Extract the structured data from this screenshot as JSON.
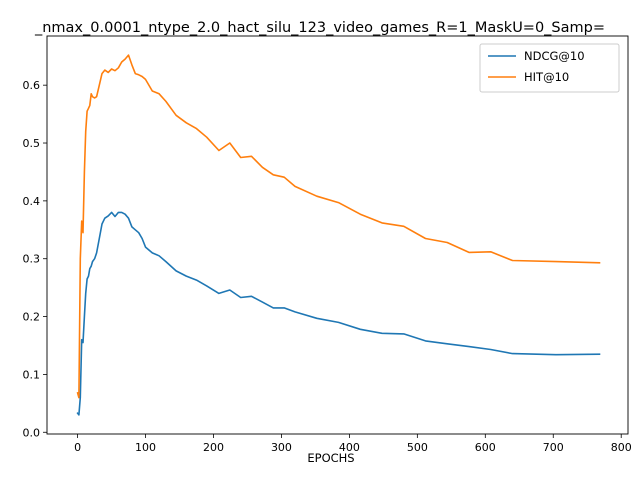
{
  "chart_data": {
    "type": "line",
    "title": "_nmax_0.0001_ntype_2.0_hact_silu_123_video_games_R=1_MaskU=0_Samp=",
    "xlabel": "EPOCHS",
    "ylabel": "",
    "xlim": [
      -45,
      810
    ],
    "ylim": [
      -0.003,
      0.685
    ],
    "xticks": [
      0,
      100,
      200,
      300,
      400,
      500,
      600,
      700,
      800
    ],
    "yticks": [
      0.0,
      0.1,
      0.2,
      0.3,
      0.4,
      0.5,
      0.6
    ],
    "grid": false,
    "legend_position": "top-right",
    "series": [
      {
        "name": "NDCG@10",
        "color": "#1f77b4",
        "x": [
          0,
          2,
          4,
          6,
          8,
          10,
          12,
          14,
          16,
          18,
          20,
          22,
          25,
          28,
          32,
          36,
          40,
          45,
          50,
          55,
          60,
          65,
          70,
          75,
          80,
          85,
          90,
          95,
          100,
          110,
          120,
          130,
          145,
          160,
          175,
          190,
          208,
          224,
          240,
          256,
          272,
          288,
          304,
          320,
          352,
          384,
          416,
          448,
          480,
          512,
          544,
          576,
          608,
          640,
          704,
          768
        ],
        "y": [
          0.033,
          0.03,
          0.06,
          0.16,
          0.155,
          0.2,
          0.24,
          0.265,
          0.27,
          0.283,
          0.287,
          0.295,
          0.3,
          0.31,
          0.335,
          0.36,
          0.37,
          0.374,
          0.38,
          0.373,
          0.38,
          0.38,
          0.377,
          0.37,
          0.355,
          0.35,
          0.345,
          0.335,
          0.32,
          0.31,
          0.305,
          0.295,
          0.279,
          0.27,
          0.263,
          0.253,
          0.24,
          0.246,
          0.233,
          0.235,
          0.225,
          0.215,
          0.215,
          0.208,
          0.197,
          0.19,
          0.178,
          0.171,
          0.17,
          0.158,
          0.153,
          0.148,
          0.143,
          0.136,
          0.134,
          0.135
        ]
      },
      {
        "name": "HIT@10",
        "color": "#ff7f0e",
        "x": [
          0,
          2,
          4,
          6,
          8,
          10,
          12,
          14,
          16,
          18,
          20,
          22,
          25,
          28,
          32,
          36,
          40,
          45,
          50,
          55,
          60,
          65,
          70,
          75,
          80,
          85,
          90,
          95,
          100,
          110,
          120,
          130,
          145,
          160,
          175,
          190,
          208,
          224,
          240,
          256,
          272,
          288,
          304,
          320,
          352,
          384,
          416,
          448,
          480,
          512,
          544,
          576,
          608,
          640,
          704,
          768
        ],
        "y": [
          0.068,
          0.06,
          0.3,
          0.365,
          0.345,
          0.45,
          0.52,
          0.555,
          0.56,
          0.565,
          0.585,
          0.58,
          0.578,
          0.58,
          0.6,
          0.62,
          0.626,
          0.622,
          0.628,
          0.625,
          0.63,
          0.64,
          0.645,
          0.652,
          0.635,
          0.62,
          0.618,
          0.615,
          0.61,
          0.59,
          0.585,
          0.572,
          0.548,
          0.535,
          0.525,
          0.51,
          0.487,
          0.5,
          0.475,
          0.477,
          0.458,
          0.445,
          0.441,
          0.425,
          0.408,
          0.397,
          0.377,
          0.362,
          0.356,
          0.335,
          0.328,
          0.311,
          0.312,
          0.297,
          0.295,
          0.293
        ]
      }
    ]
  }
}
